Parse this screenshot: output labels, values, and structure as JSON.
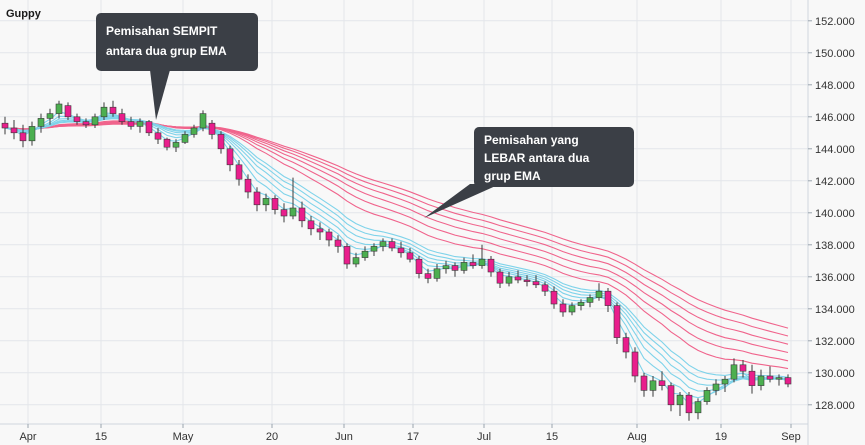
{
  "chart_data": {
    "type": "candlestick",
    "title": "Guppy",
    "x_ticks": [
      "Apr",
      "15",
      "May",
      "20",
      "Jun",
      "17",
      "Jul",
      "15",
      "Aug",
      "19",
      "Sep"
    ],
    "y_ticks": [
      "128.000",
      "130.000",
      "132.000",
      "134.000",
      "136.000",
      "138.000",
      "140.000",
      "142.000",
      "144.000",
      "146.000",
      "148.000",
      "150.000",
      "152.000"
    ],
    "ylim": [
      126.8,
      153.3
    ],
    "grid": true,
    "colors": {
      "bull": "#4caf50",
      "bear": "#e91e8c",
      "short_ema": "#7fd3ea",
      "long_ema": "#f0648c",
      "callout": "#3b3f46"
    },
    "annotations": [
      {
        "lines": [
          "Pemisahan SEMPIT",
          "antara dua grup EMA"
        ]
      },
      {
        "lines": [
          "Pemisahan yang",
          "LEBAR antara dua",
          "grup EMA"
        ]
      }
    ],
    "ohlc": [
      [
        145.6,
        146.0,
        144.9,
        145.3
      ],
      [
        145.3,
        145.8,
        144.6,
        145.0
      ],
      [
        145.0,
        145.5,
        144.1,
        144.5
      ],
      [
        144.5,
        145.7,
        144.2,
        145.4
      ],
      [
        145.4,
        146.2,
        145.0,
        145.9
      ],
      [
        145.9,
        146.5,
        145.5,
        146.2
      ],
      [
        146.2,
        147.0,
        145.9,
        146.8
      ],
      [
        146.7,
        146.9,
        145.8,
        146.0
      ],
      [
        146.0,
        146.2,
        145.5,
        145.7
      ],
      [
        145.7,
        145.9,
        145.3,
        145.5
      ],
      [
        145.5,
        146.2,
        145.3,
        146.0
      ],
      [
        146.0,
        146.9,
        145.8,
        146.6
      ],
      [
        146.6,
        147.0,
        146.0,
        146.2
      ],
      [
        146.2,
        146.5,
        145.5,
        145.7
      ],
      [
        145.7,
        146.0,
        145.2,
        145.4
      ],
      [
        145.4,
        145.9,
        145.0,
        145.7
      ],
      [
        145.7,
        145.8,
        144.8,
        145.0
      ],
      [
        145.0,
        145.3,
        144.3,
        144.6
      ],
      [
        144.6,
        144.7,
        143.9,
        144.1
      ],
      [
        144.1,
        144.6,
        143.8,
        144.4
      ],
      [
        144.4,
        145.1,
        144.3,
        144.9
      ],
      [
        144.9,
        145.5,
        144.7,
        145.3
      ],
      [
        145.3,
        146.4,
        145.1,
        146.2
      ],
      [
        145.6,
        145.8,
        144.6,
        144.9
      ],
      [
        144.9,
        145.1,
        143.7,
        144.0
      ],
      [
        144.0,
        144.2,
        142.6,
        143.0
      ],
      [
        143.0,
        143.3,
        141.7,
        142.1
      ],
      [
        142.1,
        142.4,
        140.9,
        141.3
      ],
      [
        141.3,
        141.6,
        140.1,
        140.5
      ],
      [
        140.5,
        141.2,
        140.1,
        140.9
      ],
      [
        140.9,
        141.1,
        139.9,
        140.2
      ],
      [
        140.2,
        140.6,
        139.4,
        139.8
      ],
      [
        139.8,
        142.2,
        139.6,
        140.3
      ],
      [
        140.3,
        140.7,
        139.1,
        139.5
      ],
      [
        139.5,
        139.8,
        138.6,
        139.0
      ],
      [
        139.0,
        139.4,
        138.3,
        138.8
      ],
      [
        138.8,
        139.0,
        137.9,
        138.3
      ],
      [
        138.3,
        138.6,
        137.5,
        137.9
      ],
      [
        137.9,
        138.1,
        136.5,
        136.8
      ],
      [
        136.8,
        137.5,
        136.6,
        137.2
      ],
      [
        137.2,
        137.9,
        137.0,
        137.6
      ],
      [
        137.6,
        138.1,
        137.3,
        137.9
      ],
      [
        137.9,
        138.4,
        137.6,
        138.2
      ],
      [
        138.2,
        138.4,
        137.6,
        137.8
      ],
      [
        137.8,
        138.2,
        137.2,
        137.5
      ],
      [
        137.5,
        137.8,
        136.9,
        137.1
      ],
      [
        137.1,
        137.3,
        135.9,
        136.2
      ],
      [
        136.2,
        136.5,
        135.6,
        135.9
      ],
      [
        135.9,
        136.8,
        135.7,
        136.5
      ],
      [
        136.5,
        137.0,
        136.2,
        136.7
      ],
      [
        136.7,
        136.9,
        136.0,
        136.4
      ],
      [
        136.4,
        137.2,
        136.2,
        136.9
      ],
      [
        136.9,
        137.4,
        136.5,
        136.7
      ],
      [
        136.7,
        138.0,
        136.5,
        137.1
      ],
      [
        137.1,
        137.3,
        136.0,
        136.3
      ],
      [
        136.3,
        136.5,
        135.3,
        135.6
      ],
      [
        135.6,
        136.3,
        135.4,
        136.0
      ],
      [
        136.0,
        136.4,
        135.6,
        135.8
      ],
      [
        135.8,
        136.1,
        135.4,
        135.7
      ],
      [
        135.7,
        136.1,
        135.3,
        135.5
      ],
      [
        135.5,
        135.7,
        134.8,
        135.1
      ],
      [
        135.1,
        135.4,
        134.0,
        134.3
      ],
      [
        134.3,
        134.6,
        133.5,
        133.8
      ],
      [
        133.8,
        134.4,
        133.6,
        134.2
      ],
      [
        134.2,
        134.6,
        133.9,
        134.4
      ],
      [
        134.4,
        134.9,
        134.1,
        134.7
      ],
      [
        134.7,
        135.6,
        134.5,
        135.1
      ],
      [
        135.1,
        135.3,
        133.8,
        134.2
      ],
      [
        134.2,
        134.4,
        131.8,
        132.2
      ],
      [
        132.2,
        132.5,
        130.9,
        131.3
      ],
      [
        131.3,
        131.6,
        129.4,
        129.8
      ],
      [
        129.8,
        130.0,
        128.5,
        128.9
      ],
      [
        128.9,
        129.8,
        128.5,
        129.5
      ],
      [
        129.5,
        130.1,
        128.9,
        129.2
      ],
      [
        129.2,
        129.4,
        127.6,
        128.0
      ],
      [
        128.0,
        128.8,
        127.3,
        128.6
      ],
      [
        128.6,
        128.8,
        127.0,
        127.5
      ],
      [
        127.5,
        128.4,
        127.1,
        128.2
      ],
      [
        128.2,
        129.1,
        128.0,
        128.9
      ],
      [
        128.9,
        129.6,
        128.6,
        129.3
      ],
      [
        129.3,
        129.8,
        128.8,
        129.6
      ],
      [
        129.6,
        130.9,
        129.4,
        130.5
      ],
      [
        130.5,
        130.8,
        129.7,
        130.1
      ],
      [
        130.1,
        130.5,
        128.7,
        129.2
      ],
      [
        129.2,
        130.2,
        128.9,
        129.8
      ],
      [
        129.8,
        130.4,
        129.4,
        129.6
      ],
      [
        129.6,
        129.9,
        129.2,
        129.7
      ],
      [
        129.7,
        129.9,
        129.1,
        129.3
      ]
    ]
  }
}
